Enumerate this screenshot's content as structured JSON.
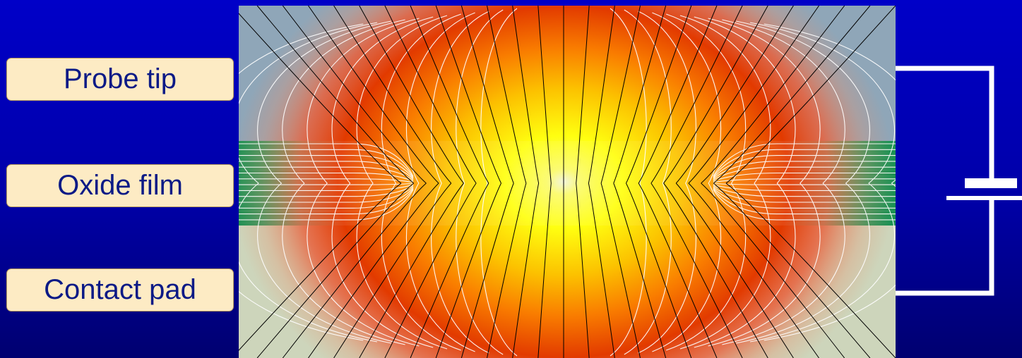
{
  "labels": {
    "probe_tip": "Probe tip",
    "oxide_film": "Oxide film",
    "contact_pad": "Contact pad"
  },
  "colors": {
    "background": "#0000b4",
    "probe_tip_region": "#8fa6b8",
    "oxide_film_region": "#0a8a48",
    "contact_pad_region": "#cdd5bb",
    "label_fill": "#fdebc4",
    "label_text": "#0b1a86",
    "heat_hot": "#ffff10",
    "heat_mid": "#f97c00",
    "heat_edge": "#e23a00",
    "current_lines": "#ffffff",
    "equipotential_lines": "#000000",
    "circuit_wire": "#ffffff"
  }
}
